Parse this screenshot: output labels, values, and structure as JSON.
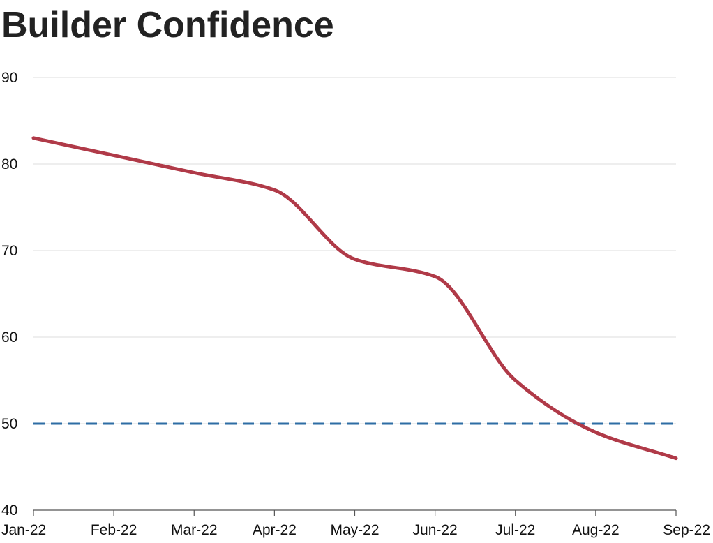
{
  "chart_data": {
    "type": "line",
    "title": "Builder Confidence",
    "xlabel": "",
    "ylabel": "",
    "x": [
      "Jan-22",
      "Feb-22",
      "Mar-22",
      "Apr-22",
      "May-22",
      "Jun-22",
      "Jul-22",
      "Aug-22",
      "Sep-22"
    ],
    "ylim": [
      40,
      90
    ],
    "yticks": [
      40,
      50,
      60,
      70,
      80,
      90
    ],
    "grid": true,
    "legend": "none",
    "series": [
      {
        "values": [
          83,
          81,
          79,
          77,
          69,
          67,
          55,
          49,
          46
        ],
        "color": "#b03a48"
      }
    ],
    "reference_line": {
      "y": 50,
      "style": "dashed",
      "color": "#2e6da4"
    }
  }
}
